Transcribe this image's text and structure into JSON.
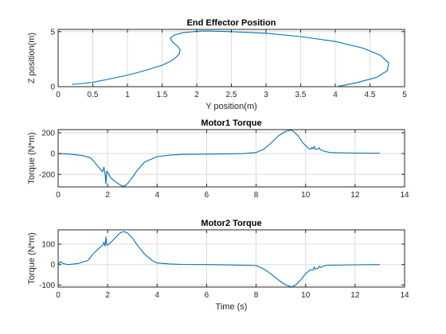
{
  "figure": {
    "background": "#ffffff"
  },
  "chart_data": [
    {
      "type": "line",
      "title": "End Effector Position",
      "xlabel": "Y position(m)",
      "ylabel": "Z position(m)",
      "xlim": [
        0,
        5
      ],
      "ylim": [
        0,
        5.2
      ],
      "xticks": [
        0,
        0.5,
        1,
        1.5,
        2,
        2.5,
        3,
        3.5,
        4,
        4.5,
        5
      ],
      "xticklabels": [
        "0",
        "0.5",
        "1",
        "1.5",
        "2",
        "2.5",
        "3",
        "3.5",
        "4",
        "4.5",
        "5"
      ],
      "yticks": [
        0,
        5
      ],
      "yticklabels": [
        "0",
        "5"
      ],
      "grid": true,
      "color": "#0072BD",
      "series": [
        {
          "x": [
            0.2,
            0.3,
            0.5,
            0.7,
            0.9,
            1.1,
            1.3,
            1.5,
            1.62,
            1.7,
            1.75,
            1.76,
            1.72,
            1.65,
            1.62,
            1.68,
            1.8,
            1.95,
            2.05,
            2.2,
            2.5,
            3.0,
            3.5,
            4.0,
            4.4,
            4.65,
            4.77,
            4.75,
            4.6,
            4.3,
            4.08,
            4.05
          ],
          "y": [
            0.22,
            0.25,
            0.4,
            0.65,
            0.9,
            1.2,
            1.55,
            1.95,
            2.3,
            2.65,
            3.0,
            3.35,
            3.7,
            4.05,
            4.4,
            4.7,
            4.9,
            5.0,
            5.05,
            5.05,
            5.0,
            4.85,
            4.55,
            4.1,
            3.5,
            2.85,
            2.15,
            1.45,
            0.85,
            0.35,
            0.08,
            0.05
          ]
        }
      ]
    },
    {
      "type": "line",
      "title": "Motor1 Torque",
      "xlabel": "",
      "ylabel": "Torque (N*m)",
      "xlim": [
        0,
        14
      ],
      "ylim": [
        -320,
        230
      ],
      "xticks": [
        0,
        2,
        4,
        6,
        8,
        10,
        12,
        14
      ],
      "xticklabels": [
        "0",
        "2",
        "4",
        "6",
        "8",
        "10",
        "12",
        "14"
      ],
      "yticks": [
        -200,
        0,
        200
      ],
      "yticklabels": [
        "-200",
        "0",
        "200"
      ],
      "grid": true,
      "color": "#0072BD",
      "series": [
        {
          "x": [
            0,
            0.5,
            1.0,
            1.3,
            1.5,
            1.7,
            1.8,
            1.85,
            1.9,
            1.93,
            1.96,
            2.0,
            2.05,
            2.1,
            2.2,
            2.4,
            2.6,
            2.7,
            2.8,
            3.0,
            3.2,
            3.5,
            4.0,
            4.5,
            5,
            6,
            7,
            7.5,
            8.0,
            8.3,
            8.6,
            8.9,
            9.2,
            9.4,
            9.5,
            9.7,
            9.9,
            10.1,
            10.2,
            10.25,
            10.3,
            10.35,
            10.4,
            10.5,
            10.55,
            10.6,
            10.8,
            11,
            12,
            13
          ],
          "y": [
            0,
            -5,
            -20,
            -40,
            -90,
            -150,
            -175,
            -130,
            -200,
            -290,
            -170,
            -180,
            -200,
            -225,
            -250,
            -285,
            -315,
            -310,
            -290,
            -230,
            -160,
            -80,
            -30,
            -15,
            -8,
            -5,
            -2,
            0,
            10,
            40,
            100,
            170,
            215,
            225,
            215,
            170,
            100,
            55,
            40,
            60,
            45,
            70,
            40,
            45,
            55,
            35,
            20,
            10,
            5,
            3
          ]
        }
      ]
    },
    {
      "type": "line",
      "title": "Motor2 Torque",
      "xlabel": "Time (s)",
      "ylabel": "Torque (N*m)",
      "xlim": [
        0,
        14
      ],
      "ylim": [
        -110,
        170
      ],
      "xticks": [
        0,
        2,
        4,
        6,
        8,
        10,
        12,
        14
      ],
      "xticklabels": [
        "0",
        "2",
        "4",
        "6",
        "8",
        "10",
        "12",
        "14"
      ],
      "yticks": [
        -100,
        0,
        100
      ],
      "yticklabels": [
        "-100",
        "0",
        "100"
      ],
      "grid": true,
      "color": "#0072BD",
      "series": [
        {
          "x": [
            0,
            0.1,
            0.2,
            0.4,
            0.8,
            1.2,
            1.4,
            1.6,
            1.8,
            1.85,
            1.9,
            1.93,
            1.96,
            2.0,
            2.05,
            2.1,
            2.3,
            2.5,
            2.65,
            2.8,
            3.0,
            3.2,
            3.5,
            3.8,
            4.0,
            4.5,
            5,
            6,
            7,
            8,
            8.3,
            8.6,
            8.9,
            9.2,
            9.45,
            9.6,
            9.8,
            10.0,
            10.2,
            10.3,
            10.35,
            10.4,
            10.5,
            10.55,
            10.6,
            10.7,
            10.8,
            11,
            12,
            13
          ],
          "y": [
            0,
            15,
            5,
            0,
            5,
            20,
            50,
            75,
            95,
            110,
            90,
            135,
            100,
            95,
            100,
            105,
            130,
            155,
            162,
            155,
            130,
            95,
            50,
            20,
            8,
            3,
            1,
            0,
            -2,
            -5,
            -20,
            -45,
            -75,
            -100,
            -110,
            -100,
            -75,
            -45,
            -25,
            -28,
            -12,
            -22,
            -18,
            -8,
            -15,
            -8,
            -5,
            -3,
            -1,
            0
          ]
        }
      ]
    }
  ]
}
